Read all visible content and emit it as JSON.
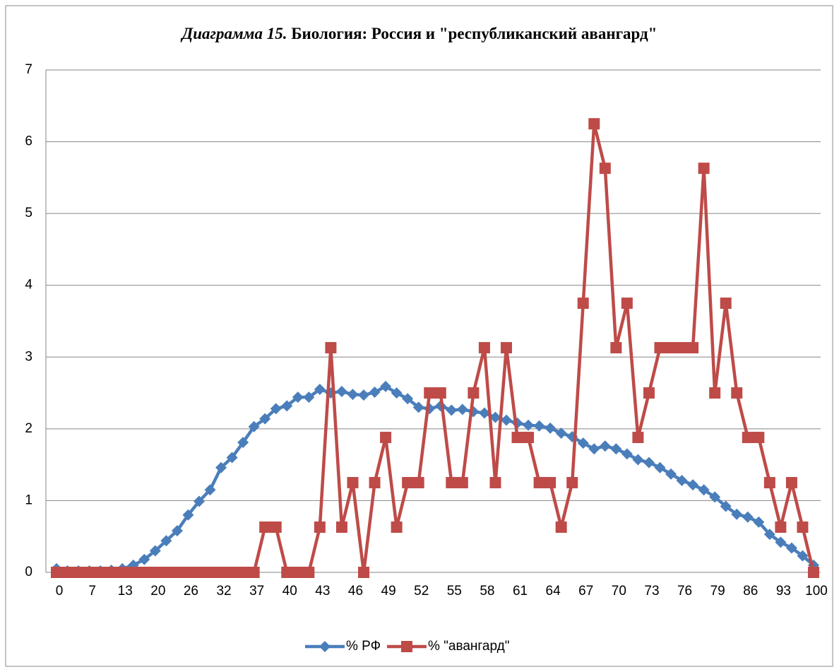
{
  "chart_data": {
    "type": "line",
    "title_italic": "Диаграмма 15.",
    "title": " Биология: Россия и \"республиканский авангард\"",
    "categories": [
      "0",
      null,
      null,
      "7",
      null,
      null,
      "13",
      null,
      null,
      "20",
      null,
      null,
      "26",
      null,
      null,
      "32",
      null,
      null,
      "37",
      null,
      null,
      "40",
      null,
      null,
      "43",
      null,
      null,
      "46",
      null,
      null,
      "49",
      null,
      null,
      "52",
      null,
      null,
      "55",
      null,
      null,
      "58",
      null,
      null,
      "61",
      null,
      null,
      "64",
      null,
      null,
      "67",
      null,
      null,
      "70",
      null,
      null,
      "73",
      null,
      null,
      "76",
      null,
      null,
      "79",
      null,
      null,
      "86",
      null,
      null,
      "93",
      null,
      null,
      "100"
    ],
    "ylim": [
      0,
      7
    ],
    "yticks": [
      0,
      1,
      2,
      3,
      4,
      5,
      6,
      7
    ],
    "grid": true,
    "legend": "bottom",
    "series": [
      {
        "name": "% РФ",
        "color": "#4a7ebb",
        "marker": "diamond",
        "values": [
          0.05,
          0.02,
          0.02,
          0.02,
          0.02,
          0.03,
          0.05,
          0.1,
          0.18,
          0.3,
          0.44,
          0.58,
          0.8,
          0.99,
          1.15,
          1.46,
          1.6,
          1.81,
          2.03,
          2.14,
          2.28,
          2.32,
          2.44,
          2.44,
          2.55,
          2.5,
          2.52,
          2.48,
          2.47,
          2.51,
          2.59,
          2.5,
          2.42,
          2.3,
          2.28,
          2.32,
          2.26,
          2.27,
          2.24,
          2.22,
          2.16,
          2.12,
          2.08,
          2.05,
          2.04,
          2.01,
          1.94,
          1.89,
          1.8,
          1.72,
          1.76,
          1.72,
          1.65,
          1.57,
          1.53,
          1.46,
          1.37,
          1.28,
          1.22,
          1.15,
          1.05,
          0.92,
          0.81,
          0.77,
          0.7,
          0.53,
          0.42,
          0.34,
          0.23,
          0.1
        ]
      },
      {
        "name": "% \"авангард\"",
        "color": "#be4b48",
        "marker": "square",
        "values": [
          0,
          0,
          0,
          0,
          0,
          0,
          0,
          0,
          0,
          0,
          0,
          0,
          0,
          0,
          0,
          0,
          0,
          0,
          0,
          0.63,
          0.63,
          0,
          0,
          0,
          0.63,
          3.13,
          0.63,
          1.25,
          0,
          1.25,
          1.88,
          0.63,
          1.25,
          1.25,
          2.5,
          2.5,
          1.25,
          1.25,
          2.5,
          3.13,
          1.25,
          3.13,
          1.88,
          1.88,
          1.25,
          1.25,
          0.63,
          1.25,
          3.75,
          6.25,
          5.63,
          3.13,
          3.75,
          1.88,
          2.5,
          3.13,
          3.13,
          3.13,
          3.13,
          5.63,
          2.5,
          3.75,
          2.5,
          1.88,
          1.88,
          1.25,
          0.63,
          1.25,
          0.63,
          0
        ]
      }
    ]
  }
}
